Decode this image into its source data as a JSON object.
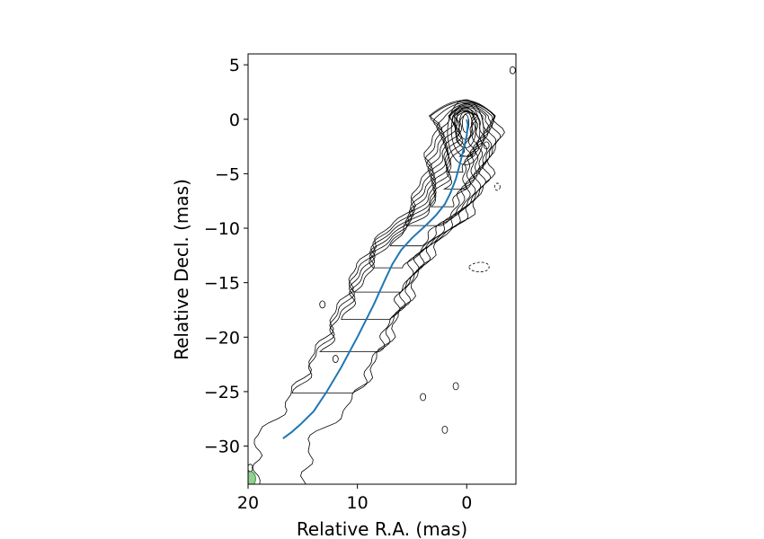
{
  "chart_data": {
    "type": "line",
    "title": "",
    "xlabel": "Relative R.A. (mas)",
    "ylabel": "Relative Decl. (mas)",
    "xlim": [
      20,
      -4.5
    ],
    "ylim": [
      -33.5,
      6
    ],
    "x_inverted": true,
    "x_ticks": [
      20,
      10,
      0
    ],
    "x_tick_labels": [
      "20",
      "10",
      "0"
    ],
    "y_ticks": [
      5,
      0,
      -5,
      -10,
      -15,
      -20,
      -25,
      -30
    ],
    "y_tick_labels": [
      "5",
      "0",
      "−5",
      "−10",
      "−15",
      "−20",
      "−25",
      "−30"
    ],
    "grid": false,
    "legend": "none",
    "series": [
      {
        "color": "#1f77b4",
        "x": [
          0.0,
          -0.1,
          0.0,
          0.3,
          0.6,
          1.0,
          1.5,
          2.0,
          2.8,
          3.8,
          5.0,
          6.0,
          6.8,
          7.5,
          8.5,
          10.0,
          11.5,
          12.8,
          14.0,
          15.2,
          16.0,
          16.8
        ],
        "y": [
          0.0,
          -0.5,
          -1.5,
          -2.8,
          -4.0,
          -5.5,
          -6.8,
          -7.8,
          -8.8,
          -9.8,
          -10.9,
          -12.0,
          -13.3,
          -14.8,
          -17.0,
          -20.0,
          -22.8,
          -25.0,
          -26.8,
          -28.0,
          -28.7,
          -29.3
        ]
      }
    ],
    "annotations": [
      {
        "type": "beam-ellipse",
        "color": "#2ca02c",
        "x": 19.8,
        "y": -33.0
      }
    ],
    "contours": {
      "levels": 12,
      "positive_color": "#000000",
      "negative_style": "dashed"
    }
  }
}
